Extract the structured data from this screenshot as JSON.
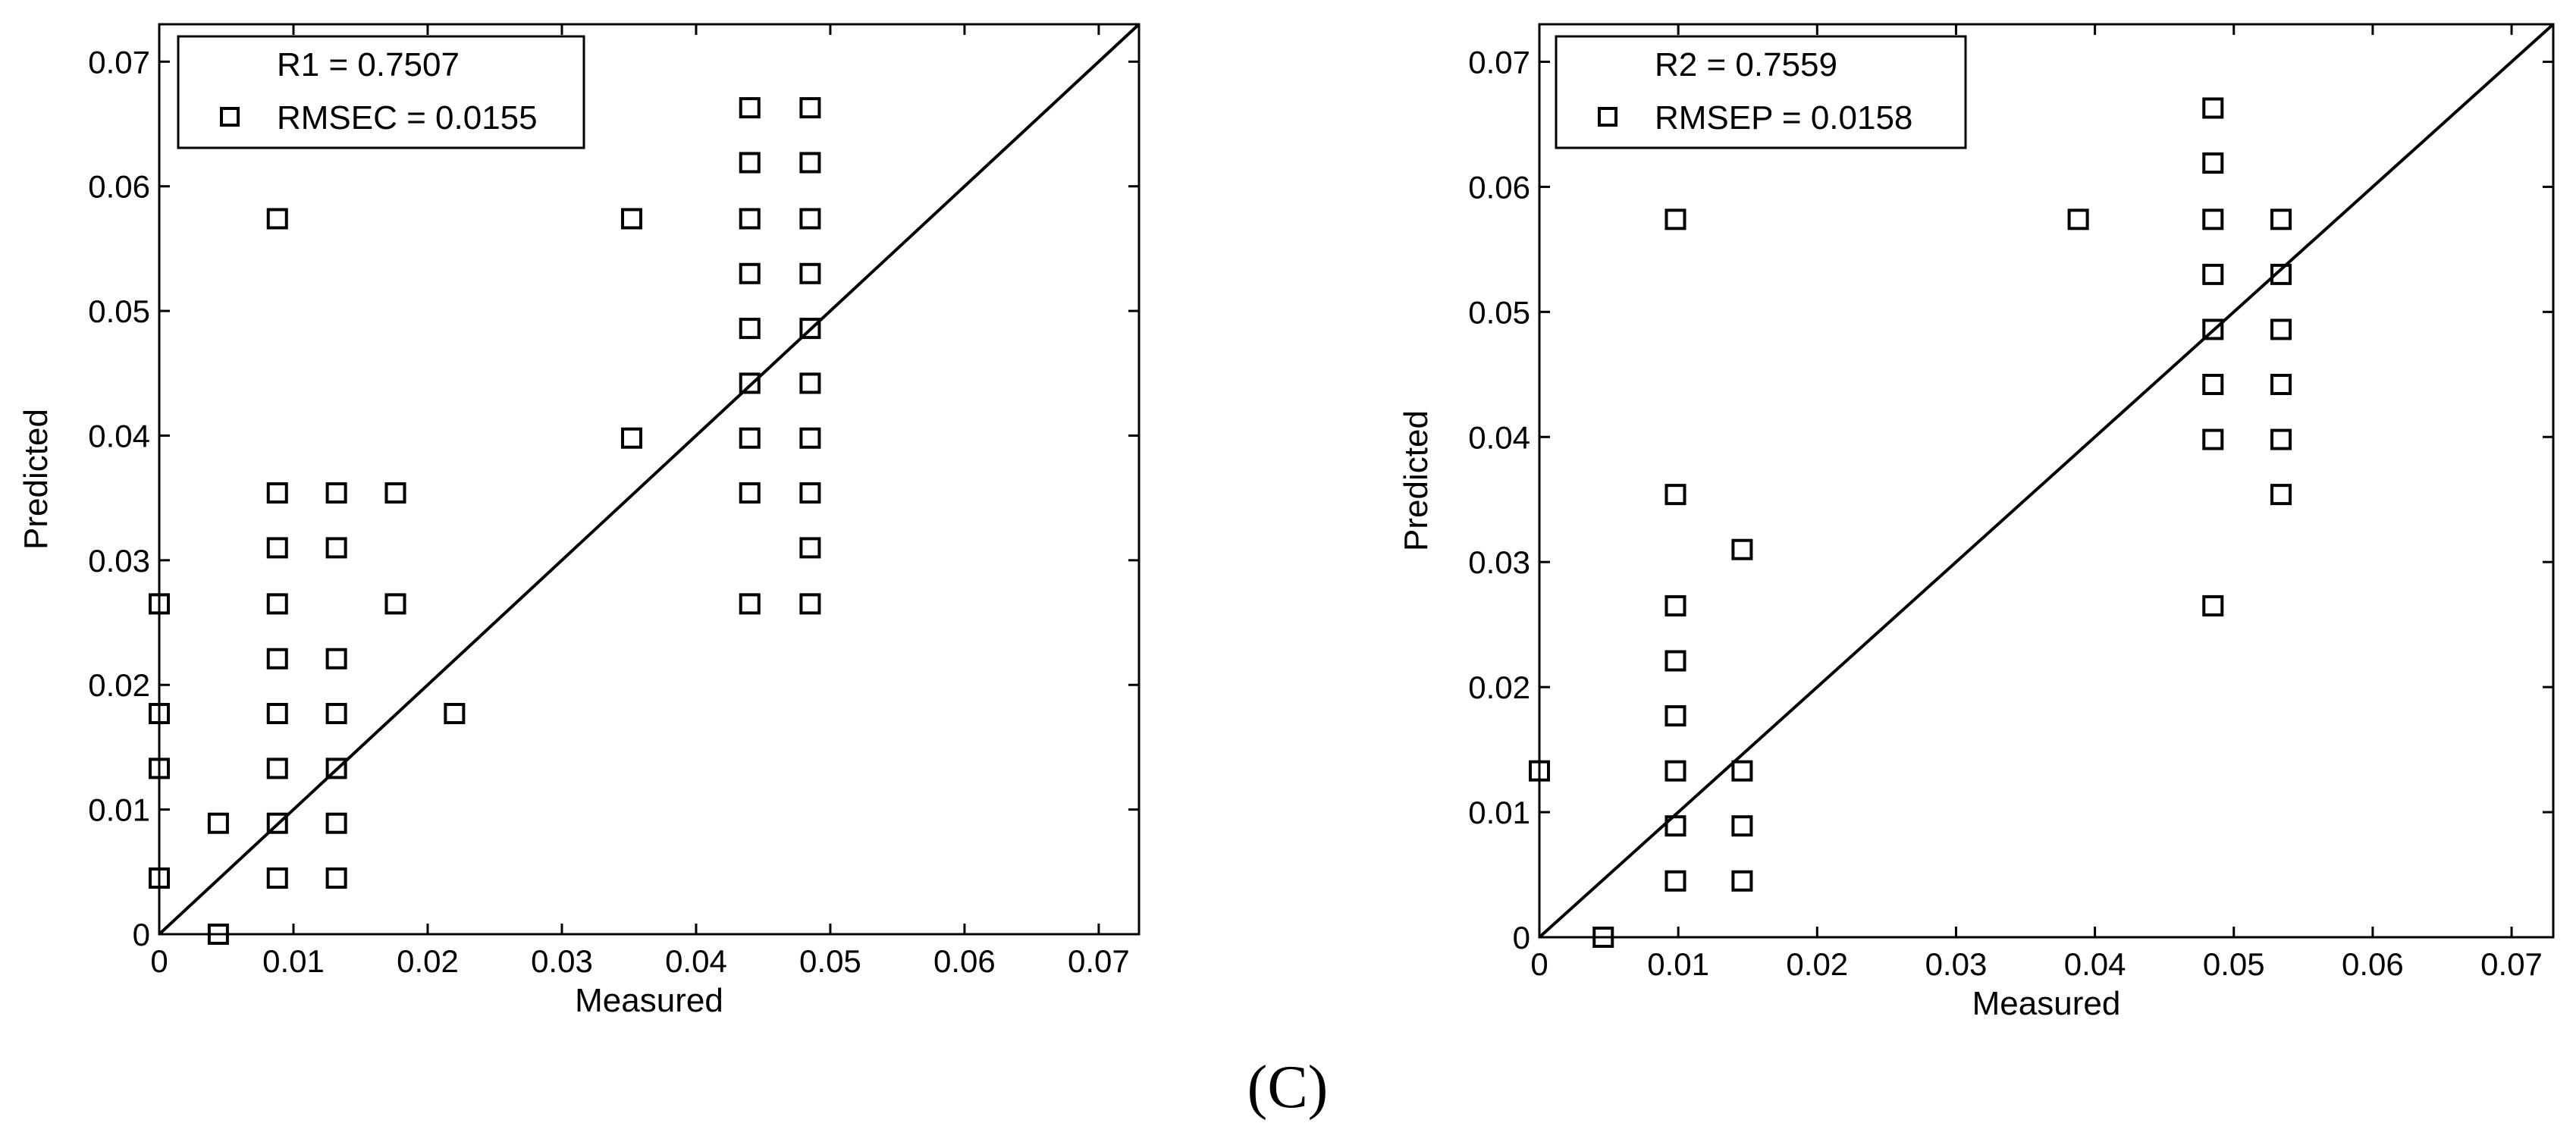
{
  "figure": {
    "caption": "(C)"
  },
  "chart_data": [
    {
      "type": "scatter",
      "xlabel": "Measured",
      "ylabel": "Predicted",
      "xlim": [
        0,
        0.073
      ],
      "ylim": [
        0,
        0.073
      ],
      "xticks": [
        0,
        0.01,
        0.02,
        0.03,
        0.04,
        0.05,
        0.06,
        0.07
      ],
      "yticks": [
        0,
        0.01,
        0.02,
        0.03,
        0.04,
        0.05,
        0.06,
        0.07
      ],
      "xtick_labels": [
        "0",
        "0.01",
        "0.02",
        "0.03",
        "0.04",
        "0.05",
        "0.06",
        "0.07"
      ],
      "ytick_labels": [
        "0",
        "0.01",
        "0.02",
        "0.03",
        "0.04",
        "0.05",
        "0.06",
        "0.07"
      ],
      "grid": false,
      "legend_position": "top-left",
      "legend": {
        "line1": "R1 = 0.7507",
        "line2": "RMSEC = 0.0155"
      },
      "reference_line": {
        "from": [
          0,
          0
        ],
        "to": [
          0.073,
          0.073
        ]
      },
      "marker": "square",
      "points": [
        {
          "x": 0,
          "y": 0.0265
        },
        {
          "x": 0,
          "y": 0.0177
        },
        {
          "x": 0,
          "y": 0.0133
        },
        {
          "x": 0,
          "y": 0.0045
        },
        {
          "x": 0.0044,
          "y": 0.0089
        },
        {
          "x": 0.0044,
          "y": 0
        },
        {
          "x": 0.0088,
          "y": 0.0574
        },
        {
          "x": 0.0088,
          "y": 0.0354
        },
        {
          "x": 0.0088,
          "y": 0.031
        },
        {
          "x": 0.0088,
          "y": 0.0265
        },
        {
          "x": 0.0088,
          "y": 0.0221
        },
        {
          "x": 0.0088,
          "y": 0.0177
        },
        {
          "x": 0.0088,
          "y": 0.0133
        },
        {
          "x": 0.0088,
          "y": 0.0089
        },
        {
          "x": 0.0088,
          "y": 0.0045
        },
        {
          "x": 0.0132,
          "y": 0.0354
        },
        {
          "x": 0.0132,
          "y": 0.031
        },
        {
          "x": 0.0132,
          "y": 0.0221
        },
        {
          "x": 0.0132,
          "y": 0.0177
        },
        {
          "x": 0.0132,
          "y": 0.0133
        },
        {
          "x": 0.0132,
          "y": 0.0089
        },
        {
          "x": 0.0132,
          "y": 0.0045
        },
        {
          "x": 0.0176,
          "y": 0.0354
        },
        {
          "x": 0.0176,
          "y": 0.0265
        },
        {
          "x": 0.022,
          "y": 0.0177
        },
        {
          "x": 0.0352,
          "y": 0.0574
        },
        {
          "x": 0.0352,
          "y": 0.0398
        },
        {
          "x": 0.044,
          "y": 0.0663
        },
        {
          "x": 0.044,
          "y": 0.0619
        },
        {
          "x": 0.044,
          "y": 0.0574
        },
        {
          "x": 0.044,
          "y": 0.053
        },
        {
          "x": 0.044,
          "y": 0.0486
        },
        {
          "x": 0.044,
          "y": 0.0442
        },
        {
          "x": 0.044,
          "y": 0.0398
        },
        {
          "x": 0.044,
          "y": 0.0354
        },
        {
          "x": 0.044,
          "y": 0.0265
        },
        {
          "x": 0.0485,
          "y": 0.0663
        },
        {
          "x": 0.0485,
          "y": 0.0619
        },
        {
          "x": 0.0485,
          "y": 0.0574
        },
        {
          "x": 0.0485,
          "y": 0.053
        },
        {
          "x": 0.0485,
          "y": 0.0486
        },
        {
          "x": 0.0485,
          "y": 0.0442
        },
        {
          "x": 0.0485,
          "y": 0.0398
        },
        {
          "x": 0.0485,
          "y": 0.0354
        },
        {
          "x": 0.0485,
          "y": 0.031
        },
        {
          "x": 0.0485,
          "y": 0.0265
        }
      ]
    },
    {
      "type": "scatter",
      "xlabel": "Measured",
      "ylabel": "Predicted",
      "xlim": [
        0,
        0.073
      ],
      "ylim": [
        0,
        0.073
      ],
      "xticks": [
        0,
        0.01,
        0.02,
        0.03,
        0.04,
        0.05,
        0.06,
        0.07
      ],
      "yticks": [
        0,
        0.01,
        0.02,
        0.03,
        0.04,
        0.05,
        0.06,
        0.07
      ],
      "xtick_labels": [
        "0",
        "0.01",
        "0.02",
        "0.03",
        "0.04",
        "0.05",
        "0.06",
        "0.07"
      ],
      "ytick_labels": [
        "0",
        "0.01",
        "0.02",
        "0.03",
        "0.04",
        "0.05",
        "0.06",
        "0.07"
      ],
      "grid": false,
      "legend_position": "top-left",
      "legend": {
        "line1": "R2 = 0.7559",
        "line2": "RMSEP = 0.0158"
      },
      "reference_line": {
        "from": [
          0,
          0
        ],
        "to": [
          0.073,
          0.073
        ]
      },
      "marker": "square",
      "points": [
        {
          "x": 0,
          "y": 0.0133
        },
        {
          "x": 0.0046,
          "y": 0
        },
        {
          "x": 0.0098,
          "y": 0.0574
        },
        {
          "x": 0.0098,
          "y": 0.0354
        },
        {
          "x": 0.0098,
          "y": 0.0265
        },
        {
          "x": 0.0098,
          "y": 0.0221
        },
        {
          "x": 0.0098,
          "y": 0.0177
        },
        {
          "x": 0.0098,
          "y": 0.0133
        },
        {
          "x": 0.0098,
          "y": 0.0089
        },
        {
          "x": 0.0098,
          "y": 0.0045
        },
        {
          "x": 0.0146,
          "y": 0.031
        },
        {
          "x": 0.0146,
          "y": 0.0133
        },
        {
          "x": 0.0146,
          "y": 0.0089
        },
        {
          "x": 0.0146,
          "y": 0.0045
        },
        {
          "x": 0.0388,
          "y": 0.0574
        },
        {
          "x": 0.0485,
          "y": 0.0663
        },
        {
          "x": 0.0485,
          "y": 0.0619
        },
        {
          "x": 0.0485,
          "y": 0.0574
        },
        {
          "x": 0.0485,
          "y": 0.053
        },
        {
          "x": 0.0485,
          "y": 0.0486
        },
        {
          "x": 0.0485,
          "y": 0.0442
        },
        {
          "x": 0.0485,
          "y": 0.0398
        },
        {
          "x": 0.0485,
          "y": 0.0265
        },
        {
          "x": 0.0534,
          "y": 0.0574
        },
        {
          "x": 0.0534,
          "y": 0.053
        },
        {
          "x": 0.0534,
          "y": 0.0486
        },
        {
          "x": 0.0534,
          "y": 0.0442
        },
        {
          "x": 0.0534,
          "y": 0.0398
        },
        {
          "x": 0.0534,
          "y": 0.0354
        }
      ]
    }
  ]
}
